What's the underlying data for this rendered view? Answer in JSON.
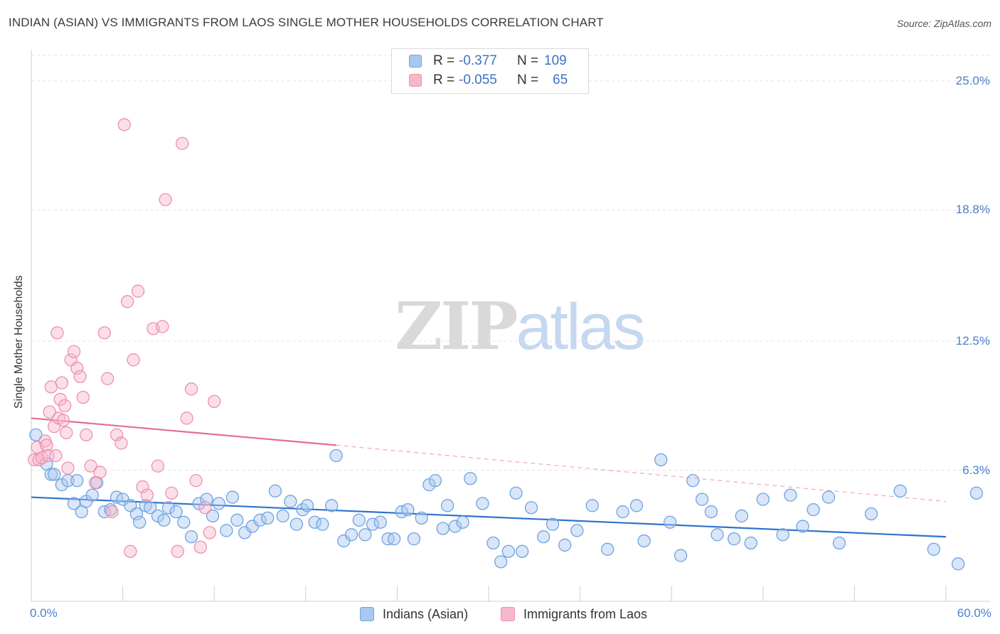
{
  "title": "INDIAN (ASIAN) VS IMMIGRANTS FROM LAOS SINGLE MOTHER HOUSEHOLDS CORRELATION CHART",
  "source": "Source: ZipAtlas.com",
  "watermark": {
    "zip": "ZIP",
    "atlas": "atlas"
  },
  "legend_top": [
    {
      "r_label": "R =",
      "r_value": "-0.377",
      "n_label": "N =",
      "n_value": "109",
      "color": "#a9c8ef"
    },
    {
      "r_label": "R =",
      "r_value": "-0.055",
      "n_label": "N =",
      "n_value": "65",
      "color": "#f6b8cb"
    }
  ],
  "legend_bottom": [
    {
      "label": "Indians (Asian)",
      "color": "#a9c8ef"
    },
    {
      "label": "Immigrants from Laos",
      "color": "#f6b8cb"
    }
  ],
  "chart_data": {
    "type": "scatter",
    "title": "INDIAN (ASIAN) VS IMMIGRANTS FROM LAOS SINGLE MOTHER HOUSEHOLDS CORRELATION CHART",
    "xlabel": "",
    "ylabel": "Single Mother Households",
    "xlim": [
      0,
      60
    ],
    "ylim": [
      0,
      26.5
    ],
    "x_tick_labels": [
      "0.0%",
      "60.0%"
    ],
    "y_ticks": [
      6.3,
      12.5,
      18.8,
      25.0
    ],
    "y_tick_labels": [
      "6.3%",
      "12.5%",
      "18.8%",
      "25.0%"
    ],
    "grid": "horizontal dashed",
    "legend_position": "top-center",
    "series": [
      {
        "name": "Indians (Asian)",
        "color": "#6fa3e0",
        "fill": "#a9c8ef",
        "trend": {
          "x": [
            0,
            60
          ],
          "y": [
            5.0,
            3.1
          ],
          "style": "solid",
          "color": "#2f72cc"
        },
        "points": [
          [
            0.3,
            8.0
          ],
          [
            1.0,
            6.6
          ],
          [
            1.3,
            6.1
          ],
          [
            1.5,
            6.1
          ],
          [
            2.0,
            5.6
          ],
          [
            2.4,
            5.8
          ],
          [
            2.8,
            4.7
          ],
          [
            3.0,
            5.8
          ],
          [
            3.3,
            4.3
          ],
          [
            3.6,
            4.8
          ],
          [
            4.0,
            5.1
          ],
          [
            4.3,
            5.7
          ],
          [
            4.8,
            4.3
          ],
          [
            5.2,
            4.4
          ],
          [
            5.6,
            5.0
          ],
          [
            6.0,
            4.9
          ],
          [
            6.5,
            4.6
          ],
          [
            6.9,
            4.2
          ],
          [
            7.1,
            3.8
          ],
          [
            7.5,
            4.6
          ],
          [
            7.8,
            4.5
          ],
          [
            8.3,
            4.1
          ],
          [
            8.7,
            3.9
          ],
          [
            9.0,
            4.5
          ],
          [
            9.5,
            4.3
          ],
          [
            10.0,
            3.8
          ],
          [
            10.5,
            3.1
          ],
          [
            11.0,
            4.7
          ],
          [
            11.5,
            4.9
          ],
          [
            11.9,
            4.1
          ],
          [
            12.3,
            4.7
          ],
          [
            12.8,
            3.4
          ],
          [
            13.2,
            5.0
          ],
          [
            13.5,
            3.9
          ],
          [
            14.0,
            3.3
          ],
          [
            14.5,
            3.6
          ],
          [
            15.0,
            3.9
          ],
          [
            15.5,
            4.0
          ],
          [
            16.0,
            5.3
          ],
          [
            16.5,
            4.1
          ],
          [
            17.0,
            4.8
          ],
          [
            17.4,
            3.7
          ],
          [
            17.8,
            4.4
          ],
          [
            18.1,
            4.6
          ],
          [
            18.6,
            3.8
          ],
          [
            19.1,
            3.7
          ],
          [
            19.7,
            4.6
          ],
          [
            20.0,
            7.0
          ],
          [
            20.5,
            2.9
          ],
          [
            21.0,
            3.2
          ],
          [
            21.5,
            3.9
          ],
          [
            21.9,
            3.2
          ],
          [
            22.4,
            3.7
          ],
          [
            22.9,
            3.8
          ],
          [
            23.4,
            3.0
          ],
          [
            23.8,
            3.0
          ],
          [
            24.3,
            4.3
          ],
          [
            24.7,
            4.4
          ],
          [
            25.1,
            3.0
          ],
          [
            25.6,
            4.0
          ],
          [
            26.1,
            5.6
          ],
          [
            26.5,
            5.8
          ],
          [
            27.0,
            3.5
          ],
          [
            27.3,
            4.6
          ],
          [
            27.8,
            3.6
          ],
          [
            28.3,
            3.8
          ],
          [
            28.8,
            5.9
          ],
          [
            29.6,
            4.7
          ],
          [
            30.3,
            2.8
          ],
          [
            30.8,
            1.9
          ],
          [
            31.3,
            2.4
          ],
          [
            31.8,
            5.2
          ],
          [
            32.2,
            2.4
          ],
          [
            32.8,
            4.5
          ],
          [
            33.6,
            3.1
          ],
          [
            34.2,
            3.7
          ],
          [
            35.0,
            2.7
          ],
          [
            35.8,
            3.4
          ],
          [
            36.8,
            4.6
          ],
          [
            37.8,
            2.5
          ],
          [
            38.8,
            4.3
          ],
          [
            39.7,
            4.6
          ],
          [
            40.2,
            2.9
          ],
          [
            41.3,
            6.8
          ],
          [
            41.9,
            3.8
          ],
          [
            42.6,
            2.2
          ],
          [
            43.4,
            5.8
          ],
          [
            44.0,
            4.9
          ],
          [
            44.6,
            4.3
          ],
          [
            45.0,
            3.2
          ],
          [
            46.1,
            3.0
          ],
          [
            46.6,
            4.1
          ],
          [
            47.2,
            2.8
          ],
          [
            48.0,
            4.9
          ],
          [
            49.3,
            3.2
          ],
          [
            49.8,
            5.1
          ],
          [
            50.6,
            3.6
          ],
          [
            51.3,
            4.4
          ],
          [
            52.3,
            5.0
          ],
          [
            53.0,
            2.8
          ],
          [
            55.1,
            4.2
          ],
          [
            57.0,
            5.3
          ],
          [
            59.2,
            2.5
          ],
          [
            60.8,
            1.8
          ],
          [
            62.0,
            5.2
          ]
        ]
      },
      {
        "name": "Immigrants from Laos",
        "color": "#ee8fae",
        "fill": "#f6b8cb",
        "trend": {
          "x": [
            0,
            20
          ],
          "y": [
            8.8,
            7.5
          ],
          "style": "solid",
          "color": "#e56d93"
        },
        "trend_extension": {
          "x": [
            20,
            60
          ],
          "y": [
            7.5,
            4.8
          ],
          "style": "dashed",
          "color": "#f0a8bf"
        },
        "points": [
          [
            0.2,
            6.8
          ],
          [
            0.4,
            7.4
          ],
          [
            0.5,
            6.8
          ],
          [
            0.7,
            6.9
          ],
          [
            0.9,
            7.7
          ],
          [
            1.0,
            7.5
          ],
          [
            1.1,
            7.0
          ],
          [
            1.2,
            9.1
          ],
          [
            1.3,
            10.3
          ],
          [
            1.5,
            8.4
          ],
          [
            1.6,
            7.0
          ],
          [
            1.7,
            12.9
          ],
          [
            1.8,
            8.8
          ],
          [
            1.9,
            9.7
          ],
          [
            2.0,
            10.5
          ],
          [
            2.1,
            8.7
          ],
          [
            2.2,
            9.4
          ],
          [
            2.3,
            8.1
          ],
          [
            2.4,
            6.4
          ],
          [
            2.6,
            11.6
          ],
          [
            2.8,
            12.0
          ],
          [
            3.0,
            11.2
          ],
          [
            3.2,
            10.8
          ],
          [
            3.4,
            9.8
          ],
          [
            3.6,
            8.0
          ],
          [
            3.9,
            6.5
          ],
          [
            4.2,
            5.7
          ],
          [
            4.5,
            6.2
          ],
          [
            4.8,
            12.9
          ],
          [
            5.0,
            10.7
          ],
          [
            5.3,
            4.3
          ],
          [
            5.6,
            8.0
          ],
          [
            5.9,
            7.6
          ],
          [
            6.1,
            22.9
          ],
          [
            6.3,
            14.4
          ],
          [
            6.5,
            2.4
          ],
          [
            6.7,
            11.6
          ],
          [
            7.0,
            14.9
          ],
          [
            7.3,
            5.5
          ],
          [
            7.6,
            5.1
          ],
          [
            8.0,
            13.1
          ],
          [
            8.3,
            6.5
          ],
          [
            8.6,
            13.2
          ],
          [
            8.8,
            19.3
          ],
          [
            9.2,
            5.2
          ],
          [
            9.6,
            2.4
          ],
          [
            9.9,
            22.0
          ],
          [
            10.2,
            8.8
          ],
          [
            10.5,
            10.2
          ],
          [
            10.8,
            5.8
          ],
          [
            11.1,
            2.6
          ],
          [
            11.4,
            4.5
          ],
          [
            11.7,
            3.3
          ],
          [
            12.0,
            9.6
          ]
        ]
      }
    ]
  }
}
